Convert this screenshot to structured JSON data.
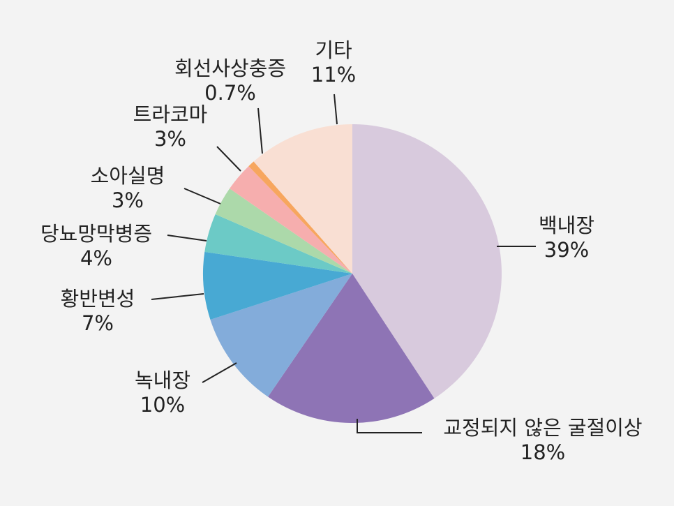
{
  "chart_data": {
    "type": "pie",
    "title": "",
    "slices": [
      {
        "name": "백내장",
        "value": 39,
        "value_label": "39%",
        "color": "#d8cadd"
      },
      {
        "name": "교정되지 않은 굴절이상",
        "value": 18,
        "value_label": "18%",
        "color": "#8e74b5"
      },
      {
        "name": "녹내장",
        "value": 10,
        "value_label": "10%",
        "color": "#83acda"
      },
      {
        "name": "황반변성",
        "value": 7,
        "value_label": "7%",
        "color": "#48a9d3"
      },
      {
        "name": "당뇨망막병증",
        "value": 4,
        "value_label": "4%",
        "color": "#6ccac6"
      },
      {
        "name": "소아실명",
        "value": 3,
        "value_label": "3%",
        "color": "#acd9aa"
      },
      {
        "name": "트라코마",
        "value": 3,
        "value_label": "3%",
        "color": "#f6aeae"
      },
      {
        "name": "회선사상충증",
        "value": 0.7,
        "value_label": "0.7%",
        "color": "#f7a65e"
      },
      {
        "name": "기타",
        "value": 11,
        "value_label": "11%",
        "color": "#f9dfd3"
      }
    ],
    "start_angle": "top",
    "direction": "clockwise",
    "legend": "none"
  }
}
